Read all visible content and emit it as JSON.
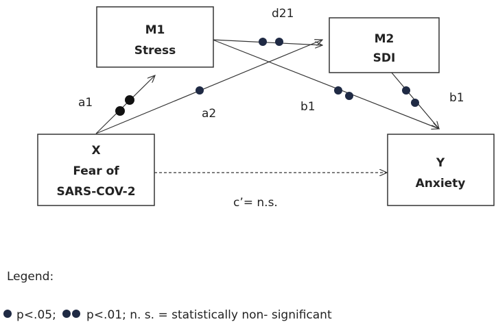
{
  "nodes": [
    {
      "id": "M1",
      "lines": [
        "M1",
        "Stress"
      ]
    },
    {
      "id": "M2",
      "lines": [
        "M2",
        "SDI"
      ]
    },
    {
      "id": "X",
      "lines": [
        "X",
        "Fear  of",
        "SARS-COV-2"
      ]
    },
    {
      "id": "Y",
      "lines": [
        "Y",
        "Anxiety"
      ]
    }
  ],
  "edges": [
    {
      "label": "a1"
    },
    {
      "label": "a2"
    },
    {
      "label": "d21"
    },
    {
      "label": "b1"
    },
    {
      "label": "b1"
    },
    {
      "label": "c’= n.s."
    }
  ],
  "legend": {
    "title": "Legend:",
    "items": [
      "p<.05;",
      "p<.01;  n. s. = statistically non- significant"
    ]
  }
}
